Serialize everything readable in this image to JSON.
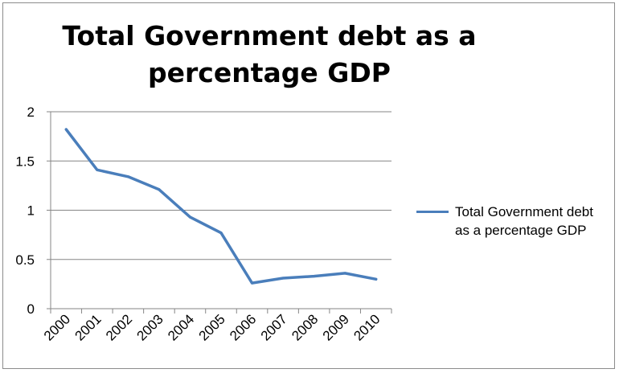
{
  "chart_data": {
    "type": "line",
    "title_lines": [
      "Total Government debt as a",
      "percentage GDP"
    ],
    "categories": [
      "2000",
      "2001",
      "2002",
      "2003",
      "2004",
      "2005",
      "2006",
      "2007",
      "2008",
      "2009",
      "2010"
    ],
    "series": [
      {
        "name": "Total Government debt as a percentage GDP",
        "values": [
          1.82,
          1.41,
          1.34,
          1.21,
          0.93,
          0.77,
          0.26,
          0.31,
          0.33,
          0.36,
          0.3
        ],
        "color": "#4a7ebb"
      }
    ],
    "yticks": [
      "0",
      "0.5",
      "1",
      "1.5",
      "2"
    ],
    "ylim": [
      0,
      2
    ],
    "grid": true,
    "legend_position": "right"
  }
}
